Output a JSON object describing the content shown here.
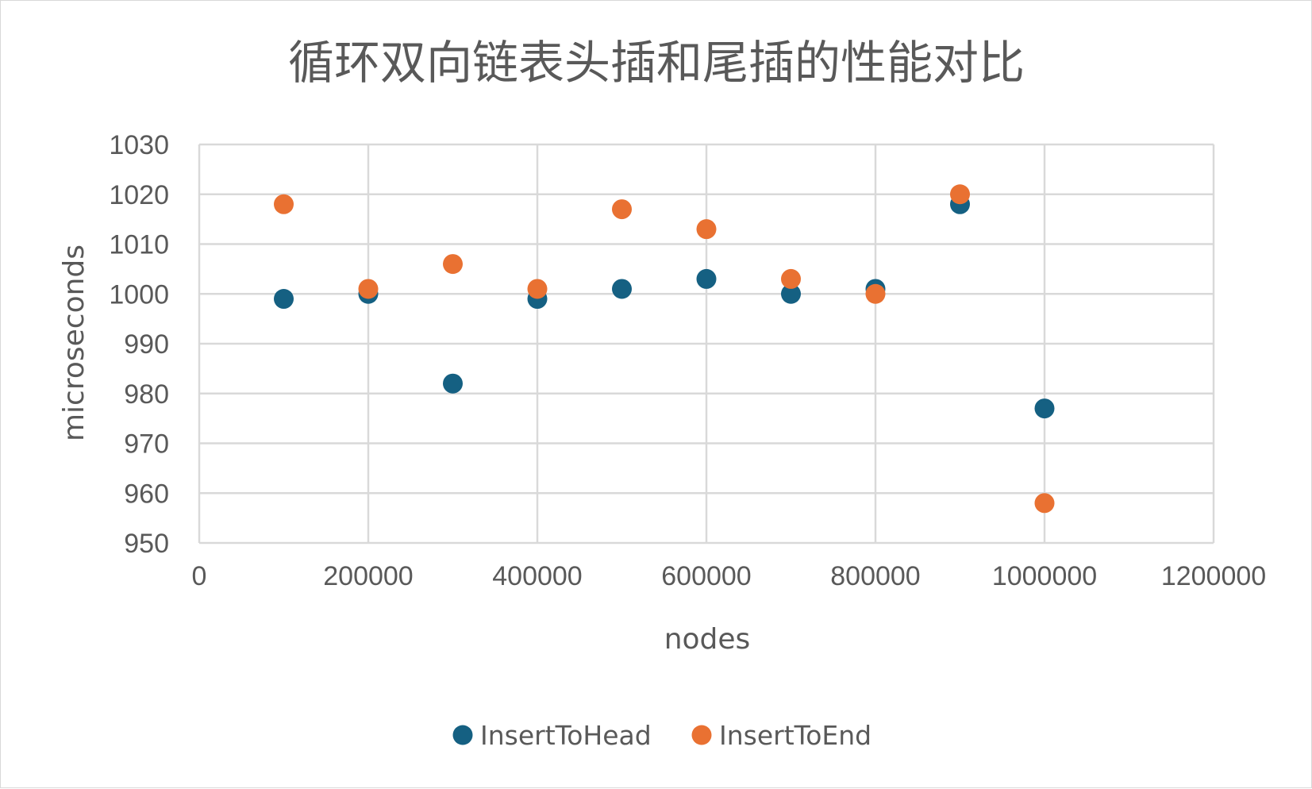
{
  "chart_data": {
    "type": "scatter",
    "title": "循环双向链表头插和尾插的性能对比",
    "xlabel": "nodes",
    "ylabel": "microseconds",
    "xlim": [
      0,
      1200000
    ],
    "ylim": [
      950,
      1030
    ],
    "x_ticks": [
      0,
      200000,
      400000,
      600000,
      800000,
      1000000,
      1200000
    ],
    "y_ticks": [
      950,
      960,
      970,
      980,
      990,
      1000,
      1010,
      1020,
      1030
    ],
    "grid": true,
    "legend_position": "bottom",
    "series": [
      {
        "name": "InsertToHead",
        "color": "#156082",
        "x": [
          100000,
          200000,
          300000,
          400000,
          500000,
          600000,
          700000,
          800000,
          900000,
          1000000
        ],
        "y": [
          999,
          1000,
          982,
          999,
          1001,
          1003,
          1000,
          1001,
          1018,
          977
        ]
      },
      {
        "name": "InsertToEnd",
        "color": "#E97132",
        "x": [
          100000,
          200000,
          300000,
          400000,
          500000,
          600000,
          700000,
          800000,
          900000,
          1000000
        ],
        "y": [
          1018,
          1001,
          1006,
          1001,
          1017,
          1013,
          1003,
          1000,
          1020,
          958
        ]
      }
    ]
  }
}
